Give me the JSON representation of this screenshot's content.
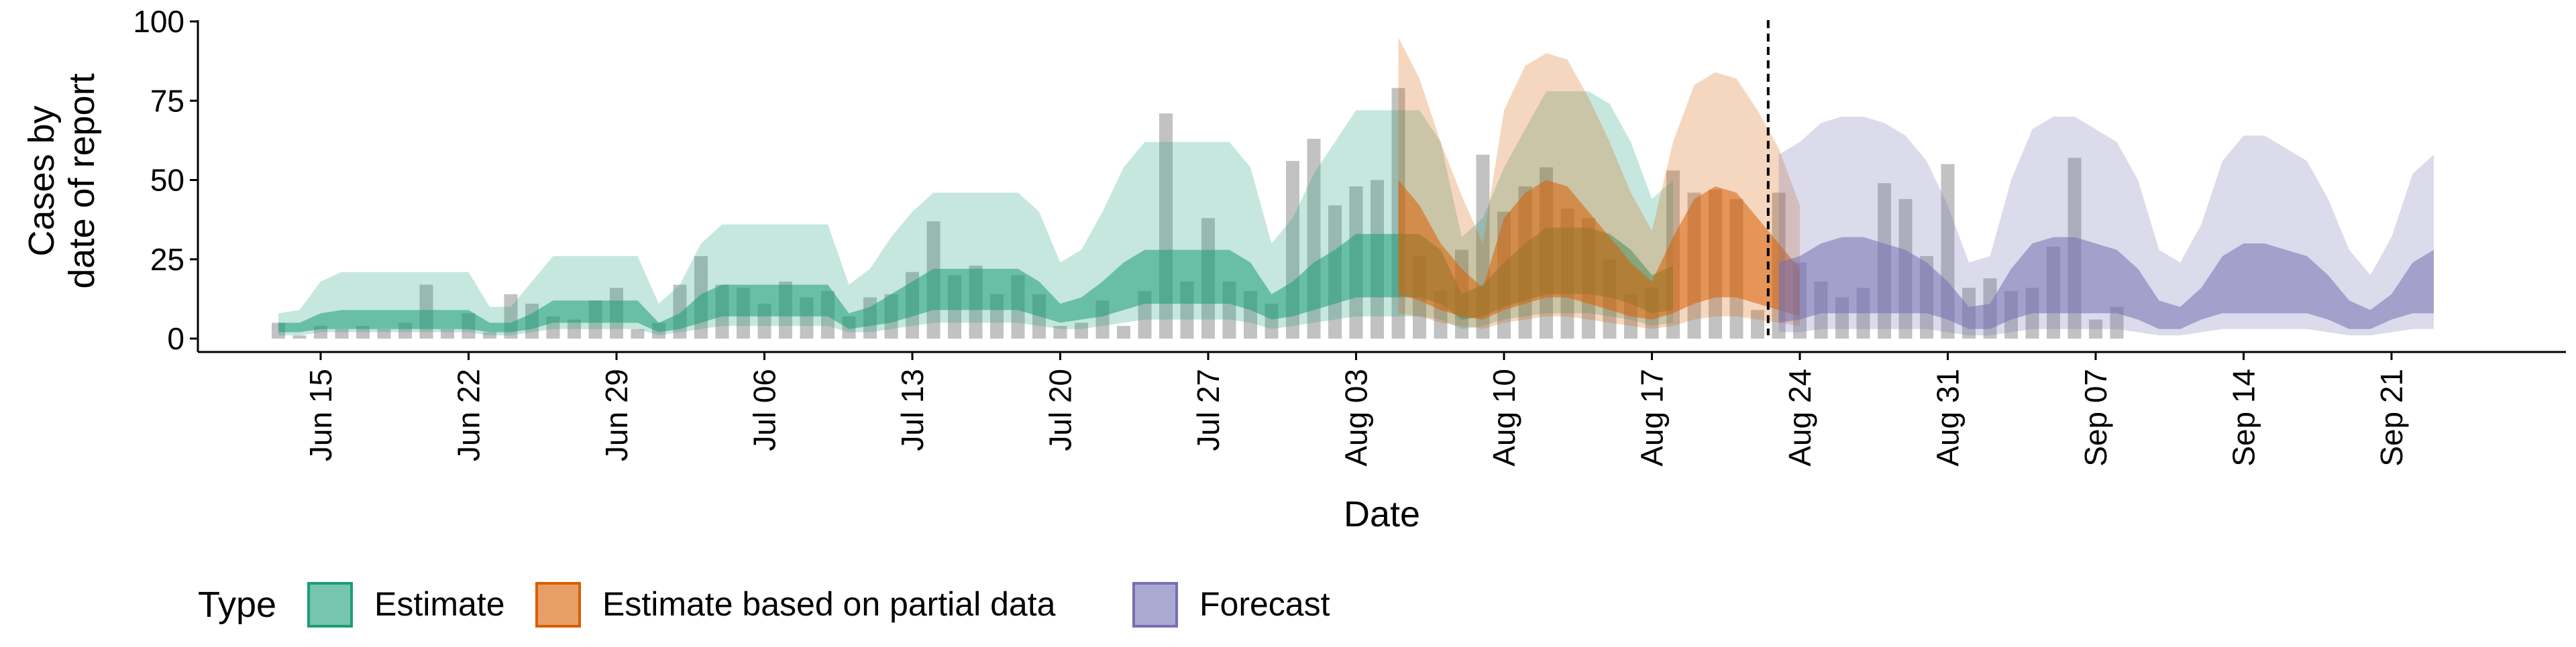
{
  "chart_data": {
    "type": "bar",
    "xlabel": "Date",
    "ylabel": [
      "Cases by",
      "date of report"
    ],
    "ylim": [
      0,
      100
    ],
    "yticks": [
      0,
      25,
      50,
      75,
      100
    ],
    "x_start": "2020-06-13",
    "forecast_start": "2020-08-23",
    "xticks": [
      "Jun 15",
      "Jun 22",
      "Jun 29",
      "Jul 06",
      "Jul 13",
      "Jul 20",
      "Jul 27",
      "Aug 03",
      "Aug 10",
      "Aug 17",
      "Aug 24",
      "Aug 31",
      "Sep 07",
      "Sep 14",
      "Sep 21"
    ],
    "reported_cases": [
      5,
      1,
      4,
      3,
      4,
      3,
      5,
      17,
      3,
      8,
      2,
      14,
      11,
      7,
      6,
      12,
      16,
      3,
      5,
      17,
      26,
      17,
      16,
      11,
      18,
      13,
      15,
      7,
      13,
      14,
      21,
      37,
      20,
      23,
      14,
      20,
      14,
      4,
      5,
      12,
      4,
      15,
      71,
      18,
      38,
      18,
      15,
      11,
      56,
      63,
      42,
      48,
      50,
      79,
      26,
      15,
      28,
      58,
      40,
      48,
      54,
      41,
      38,
      25,
      14,
      16,
      53,
      46,
      47,
      44,
      9,
      46,
      24,
      18,
      13,
      16,
      49,
      44,
      26,
      55,
      16,
      19,
      15,
      16,
      29,
      57,
      6,
      10
    ],
    "legend": {
      "title": "Type",
      "items": [
        {
          "label": "Estimate",
          "fill": "#1B9E77",
          "stroke": "#1B9E77"
        },
        {
          "label": "Estimate based on partial data",
          "fill": "#D95F02",
          "stroke": "#D95F02"
        },
        {
          "label": "Forecast",
          "fill": "#7570B3",
          "stroke": "#7570B3"
        }
      ]
    },
    "series": [
      {
        "name": "Estimate",
        "color": "#1B9E77",
        "start": "2020-06-13",
        "lower90": [
          1,
          1,
          2,
          2,
          2,
          2,
          2,
          2,
          2,
          2,
          1,
          1,
          2,
          3,
          3,
          3,
          3,
          3,
          1,
          2,
          3,
          4,
          4,
          4,
          4,
          4,
          4,
          2,
          2,
          3,
          4,
          5,
          5,
          5,
          5,
          5,
          4,
          3,
          3,
          4,
          5,
          6,
          6,
          6,
          6,
          6,
          5,
          3,
          4,
          5,
          6,
          7,
          7,
          7,
          7,
          6,
          3,
          4,
          6,
          7,
          8,
          8,
          8,
          7,
          6,
          4,
          5
        ],
        "lower50": [
          2,
          2,
          3,
          3,
          3,
          3,
          3,
          3,
          3,
          3,
          2,
          2,
          3,
          5,
          5,
          5,
          5,
          5,
          2,
          3,
          5,
          7,
          7,
          7,
          7,
          7,
          7,
          3,
          4,
          5,
          7,
          9,
          9,
          9,
          9,
          9,
          7,
          5,
          6,
          7,
          9,
          11,
          11,
          11,
          11,
          11,
          9,
          6,
          7,
          9,
          11,
          13,
          13,
          13,
          13,
          11,
          6,
          7,
          10,
          12,
          14,
          14,
          14,
          13,
          11,
          8,
          9
        ],
        "upper50": [
          5,
          5,
          8,
          9,
          9,
          9,
          9,
          9,
          9,
          9,
          5,
          5,
          8,
          12,
          12,
          12,
          12,
          12,
          5,
          8,
          14,
          17,
          17,
          17,
          17,
          17,
          17,
          8,
          10,
          14,
          18,
          22,
          22,
          22,
          22,
          22,
          18,
          11,
          13,
          18,
          24,
          28,
          28,
          28,
          28,
          28,
          24,
          14,
          18,
          24,
          28,
          33,
          33,
          33,
          33,
          28,
          14,
          17,
          24,
          30,
          35,
          35,
          35,
          33,
          28,
          20,
          23
        ],
        "upper90": [
          8,
          9,
          18,
          21,
          21,
          21,
          21,
          21,
          21,
          21,
          10,
          10,
          18,
          26,
          26,
          26,
          26,
          26,
          11,
          17,
          30,
          36,
          36,
          36,
          36,
          36,
          36,
          17,
          22,
          32,
          40,
          46,
          46,
          46,
          46,
          46,
          40,
          24,
          28,
          40,
          54,
          62,
          62,
          62,
          62,
          62,
          54,
          30,
          38,
          52,
          62,
          72,
          72,
          72,
          72,
          62,
          32,
          38,
          54,
          66,
          78,
          78,
          78,
          74,
          62,
          44,
          50
        ]
      },
      {
        "name": "Estimate based on partial data",
        "color": "#D95F02",
        "start": "2020-08-05",
        "lower90": [
          8,
          7,
          5,
          4,
          3,
          5,
          6,
          7,
          7,
          6,
          5,
          4,
          3,
          4,
          6,
          7,
          7,
          6,
          5,
          4
        ],
        "lower50": [
          14,
          12,
          9,
          7,
          6,
          9,
          11,
          13,
          13,
          11,
          9,
          7,
          6,
          8,
          11,
          13,
          13,
          11,
          9,
          7
        ],
        "upper50": [
          50,
          42,
          30,
          22,
          16,
          38,
          46,
          50,
          48,
          40,
          32,
          24,
          18,
          32,
          44,
          48,
          46,
          38,
          30,
          22
        ],
        "upper90": [
          95,
          82,
          62,
          45,
          30,
          72,
          86,
          90,
          88,
          76,
          62,
          46,
          34,
          62,
          80,
          84,
          82,
          72,
          60,
          42
        ]
      },
      {
        "name": "Forecast",
        "color": "#7570B3",
        "start": "2020-08-23",
        "lower90": [
          2,
          2,
          3,
          3,
          3,
          3,
          3,
          3,
          2,
          1,
          1,
          2,
          3,
          3,
          3,
          3,
          3,
          2,
          1,
          1,
          2,
          3,
          3,
          3,
          3,
          3,
          2,
          1,
          1,
          2,
          3,
          3
        ],
        "lower50": [
          5,
          6,
          8,
          8,
          8,
          8,
          8,
          8,
          6,
          3,
          3,
          6,
          8,
          8,
          8,
          8,
          8,
          6,
          3,
          3,
          6,
          8,
          8,
          8,
          8,
          8,
          6,
          3,
          3,
          6,
          8,
          8
        ],
        "upper50": [
          24,
          26,
          30,
          32,
          32,
          30,
          28,
          24,
          18,
          10,
          11,
          22,
          30,
          32,
          32,
          30,
          28,
          22,
          12,
          10,
          16,
          26,
          30,
          30,
          28,
          26,
          20,
          12,
          9,
          14,
          24,
          28
        ],
        "upper90": [
          58,
          62,
          68,
          70,
          70,
          68,
          64,
          56,
          42,
          24,
          26,
          50,
          66,
          70,
          70,
          66,
          62,
          50,
          28,
          24,
          36,
          56,
          64,
          64,
          60,
          56,
          44,
          28,
          20,
          32,
          52,
          58
        ]
      }
    ]
  }
}
